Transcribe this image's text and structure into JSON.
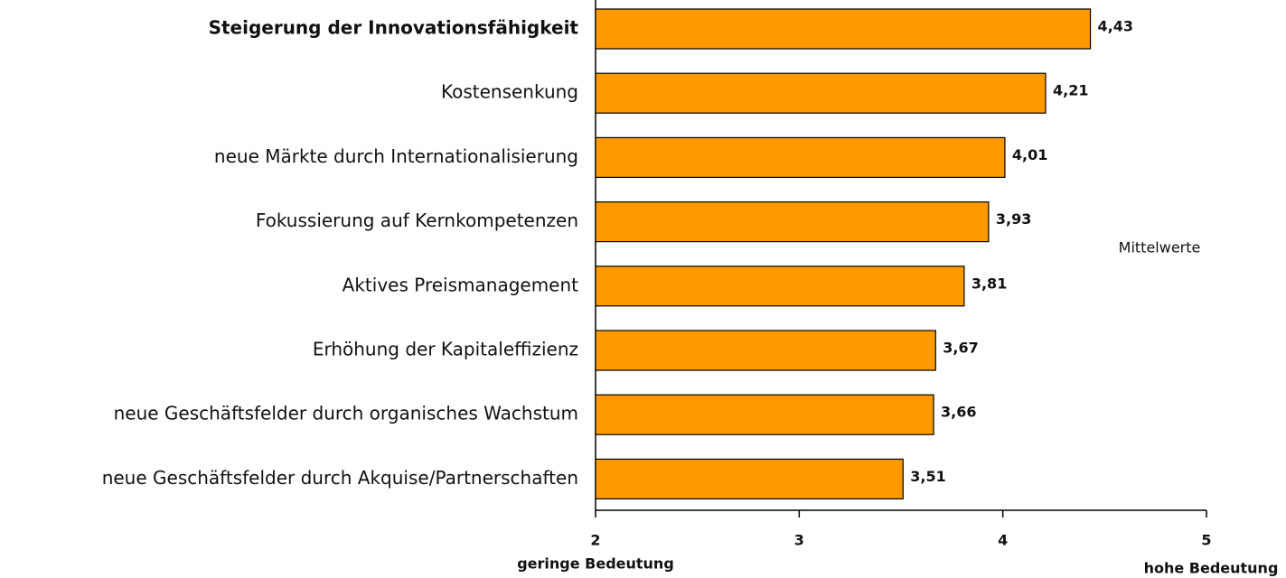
{
  "chart_data": {
    "type": "barh",
    "categories": [
      "Steigerung der Innovationsfähigkeit",
      "Kostensenkung",
      "neue Märkte durch Internationalisierung",
      "Fokussierung auf Kernkompetenzen",
      "Aktives Preismanagement",
      "Erhöhung der Kapitaleffizienz",
      "neue Geschäftsfelder durch organisches Wachstum",
      "neue Geschäftsfelder durch Akquise/Partnerschaften"
    ],
    "values": [
      4.43,
      4.21,
      4.01,
      3.93,
      3.81,
      3.67,
      3.66,
      3.51
    ],
    "value_labels": [
      "4,43",
      "4,21",
      "4,01",
      "3,93",
      "3,81",
      "3,67",
      "3,66",
      "3,51"
    ],
    "color": "#ff9900",
    "xlim": [
      2,
      5
    ],
    "xticks": [
      2,
      3,
      4,
      5
    ],
    "annotation": "Mittelwerte",
    "x_label_low": "geringe Bedeutung",
    "x_label_high": "hohe Bedeutung"
  }
}
